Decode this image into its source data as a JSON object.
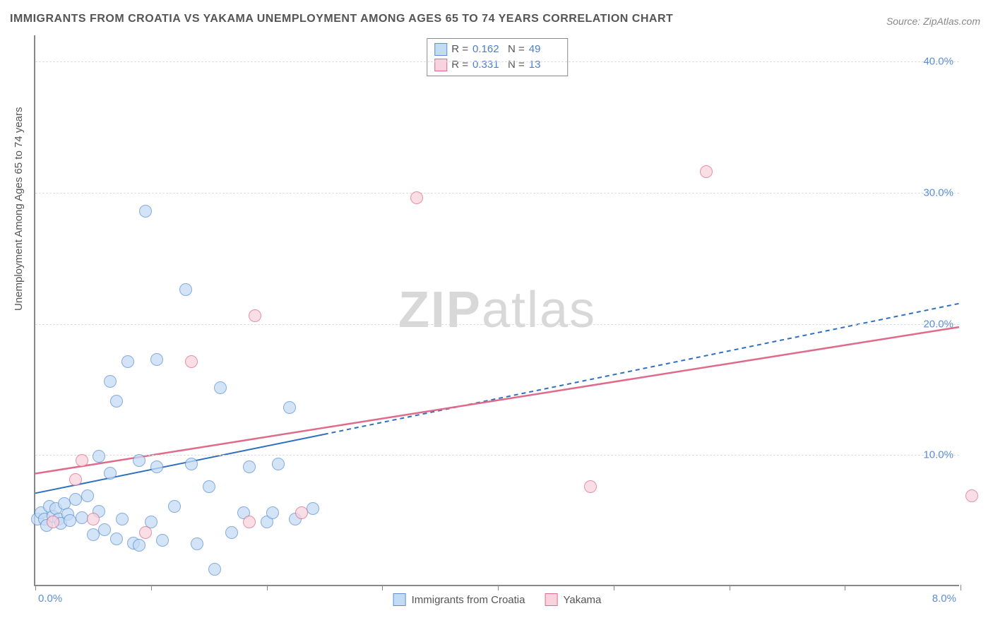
{
  "chart": {
    "type": "scatter",
    "title": "IMMIGRANTS FROM CROATIA VS YAKAMA UNEMPLOYMENT AMONG AGES 65 TO 74 YEARS CORRELATION CHART",
    "source": "Source: ZipAtlas.com",
    "ylabel": "Unemployment Among Ages 65 to 74 years",
    "watermark_a": "ZIP",
    "watermark_b": "atlas",
    "background_color": "#ffffff",
    "grid_color": "#dddddd",
    "axis_color": "#888888",
    "text_color": "#555555",
    "value_color": "#4a7fc9",
    "title_fontsize": 16,
    "label_fontsize": 15,
    "watermark_fontsize": 72,
    "watermark_color": "#d8d8d8",
    "point_radius": 9,
    "xlim": [
      0,
      8
    ],
    "ylim": [
      0,
      42
    ],
    "x_tick_positions": [
      0,
      1,
      2,
      3,
      4,
      5,
      6,
      7,
      8
    ],
    "x_label_min": "0.0%",
    "x_label_max": "8.0%",
    "y_gridlines": [
      {
        "v": 10,
        "label": "10.0%"
      },
      {
        "v": 20,
        "label": "20.0%"
      },
      {
        "v": 30,
        "label": "30.0%"
      },
      {
        "v": 40,
        "label": "40.0%"
      }
    ],
    "series": [
      {
        "name": "Immigrants from Croatia",
        "fill": "#c3dbf4",
        "stroke": "#5b8fd6",
        "opacity": 0.75,
        "r_label": "R =",
        "r_value": "0.162",
        "n_label": "N =",
        "n_value": "49",
        "trend": {
          "x1": 0,
          "y1": 7.0,
          "xEndSolid": 2.5,
          "yEndSolid": 11.5,
          "x2": 8.0,
          "y2": 21.5,
          "color": "#2f6fc0",
          "width": 2,
          "dash": "6,5"
        },
        "points": [
          {
            "x": 0.02,
            "y": 5.0
          },
          {
            "x": 0.05,
            "y": 5.5
          },
          {
            "x": 0.08,
            "y": 5.0
          },
          {
            "x": 0.1,
            "y": 4.5
          },
          {
            "x": 0.12,
            "y": 6.0
          },
          {
            "x": 0.15,
            "y": 5.2
          },
          {
            "x": 0.18,
            "y": 5.8
          },
          {
            "x": 0.2,
            "y": 5.0
          },
          {
            "x": 0.22,
            "y": 4.7
          },
          {
            "x": 0.25,
            "y": 6.2
          },
          {
            "x": 0.28,
            "y": 5.4
          },
          {
            "x": 0.3,
            "y": 4.9
          },
          {
            "x": 0.35,
            "y": 6.5
          },
          {
            "x": 0.4,
            "y": 5.1
          },
          {
            "x": 0.45,
            "y": 6.8
          },
          {
            "x": 0.5,
            "y": 3.8
          },
          {
            "x": 0.55,
            "y": 5.6
          },
          {
            "x": 0.55,
            "y": 9.8
          },
          {
            "x": 0.6,
            "y": 4.2
          },
          {
            "x": 0.65,
            "y": 8.5
          },
          {
            "x": 0.65,
            "y": 15.5
          },
          {
            "x": 0.7,
            "y": 3.5
          },
          {
            "x": 0.7,
            "y": 14.0
          },
          {
            "x": 0.75,
            "y": 5.0
          },
          {
            "x": 0.8,
            "y": 17.0
          },
          {
            "x": 0.85,
            "y": 3.2
          },
          {
            "x": 0.9,
            "y": 9.5
          },
          {
            "x": 0.9,
            "y": 3.0
          },
          {
            "x": 0.95,
            "y": 28.5
          },
          {
            "x": 1.0,
            "y": 4.8
          },
          {
            "x": 1.05,
            "y": 9.0
          },
          {
            "x": 1.05,
            "y": 17.2
          },
          {
            "x": 1.1,
            "y": 3.4
          },
          {
            "x": 1.2,
            "y": 6.0
          },
          {
            "x": 1.3,
            "y": 22.5
          },
          {
            "x": 1.35,
            "y": 9.2
          },
          {
            "x": 1.4,
            "y": 3.1
          },
          {
            "x": 1.5,
            "y": 7.5
          },
          {
            "x": 1.55,
            "y": 1.2
          },
          {
            "x": 1.6,
            "y": 15.0
          },
          {
            "x": 1.7,
            "y": 4.0
          },
          {
            "x": 1.8,
            "y": 5.5
          },
          {
            "x": 1.85,
            "y": 9.0
          },
          {
            "x": 2.0,
            "y": 4.8
          },
          {
            "x": 2.05,
            "y": 5.5
          },
          {
            "x": 2.1,
            "y": 9.2
          },
          {
            "x": 2.2,
            "y": 13.5
          },
          {
            "x": 2.25,
            "y": 5.0
          },
          {
            "x": 2.4,
            "y": 5.8
          }
        ]
      },
      {
        "name": "Yakama",
        "fill": "#f7d3dd",
        "stroke": "#e06a8a",
        "opacity": 0.75,
        "r_label": "R =",
        "r_value": "0.331",
        "n_label": "N =",
        "n_value": "13",
        "trend": {
          "x1": 0,
          "y1": 8.5,
          "xEndSolid": 8.0,
          "yEndSolid": 19.7,
          "x2": 8.0,
          "y2": 19.7,
          "color": "#e06a8a",
          "width": 2.5,
          "dash": ""
        },
        "points": [
          {
            "x": 0.15,
            "y": 4.8
          },
          {
            "x": 0.35,
            "y": 8.0
          },
          {
            "x": 0.4,
            "y": 9.5
          },
          {
            "x": 0.5,
            "y": 5.0
          },
          {
            "x": 0.95,
            "y": 4.0
          },
          {
            "x": 1.35,
            "y": 17.0
          },
          {
            "x": 1.85,
            "y": 4.8
          },
          {
            "x": 1.9,
            "y": 20.5
          },
          {
            "x": 2.3,
            "y": 5.5
          },
          {
            "x": 3.3,
            "y": 29.5
          },
          {
            "x": 4.8,
            "y": 7.5
          },
          {
            "x": 5.8,
            "y": 31.5
          },
          {
            "x": 8.1,
            "y": 6.8
          }
        ]
      }
    ]
  }
}
